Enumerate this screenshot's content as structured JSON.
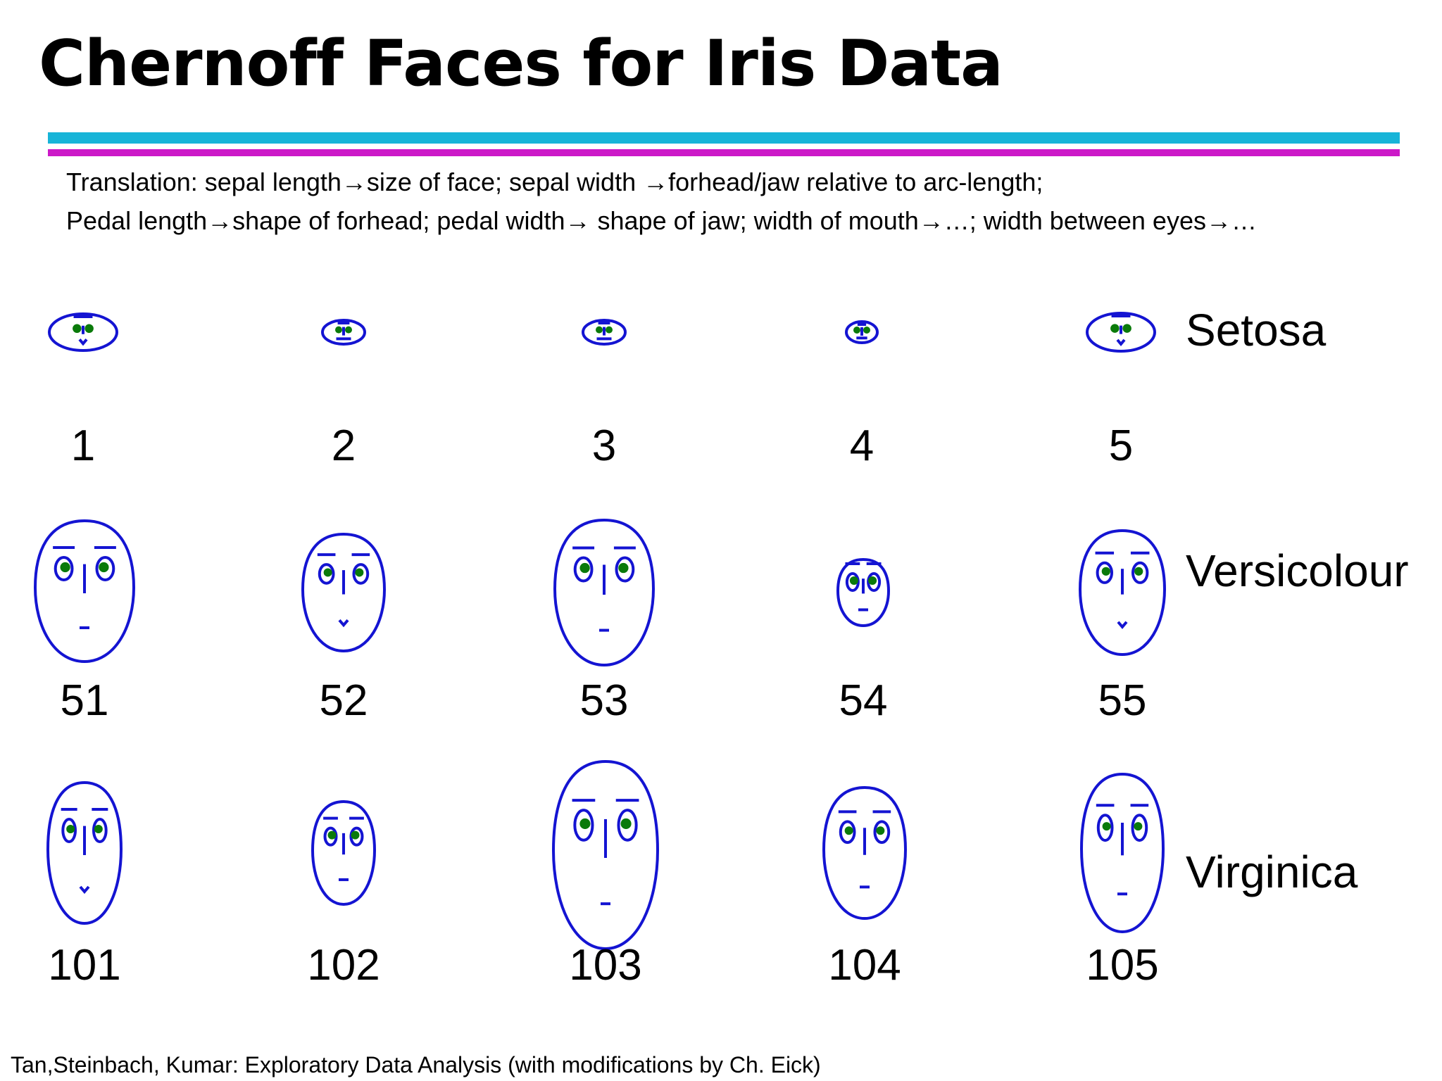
{
  "slide": {
    "title": "Chernoff Faces for Iris Data",
    "translation_line1": "Translation: sepal length→size of face; sepal width →forhead/jaw relative to arc-length;",
    "translation_line2": "Pedal length→shape of forhead; pedal width→ shape of jaw; width of mouth→…; width between eyes→…",
    "footer": "Tan,Steinbach, Kumar: Exploratory Data Analysis (with modifications by Ch. Eick)"
  },
  "colors": {
    "face_outline": "#1414d2",
    "eye_pupil": "#0a7a0a",
    "rule_top": "#17b4d8",
    "rule_bottom": "#cc19c8"
  },
  "rows": [
    {
      "species": "Setosa",
      "faces": [
        {
          "id": "1"
        },
        {
          "id": "2"
        },
        {
          "id": "3"
        },
        {
          "id": "4"
        },
        {
          "id": "5"
        }
      ]
    },
    {
      "species": "Versicolour",
      "faces": [
        {
          "id": "51"
        },
        {
          "id": "52"
        },
        {
          "id": "53"
        },
        {
          "id": "54"
        },
        {
          "id": "55"
        }
      ]
    },
    {
      "species": "Virginica",
      "faces": [
        {
          "id": "101"
        },
        {
          "id": "102"
        },
        {
          "id": "103"
        },
        {
          "id": "104"
        },
        {
          "id": "105"
        }
      ]
    }
  ]
}
